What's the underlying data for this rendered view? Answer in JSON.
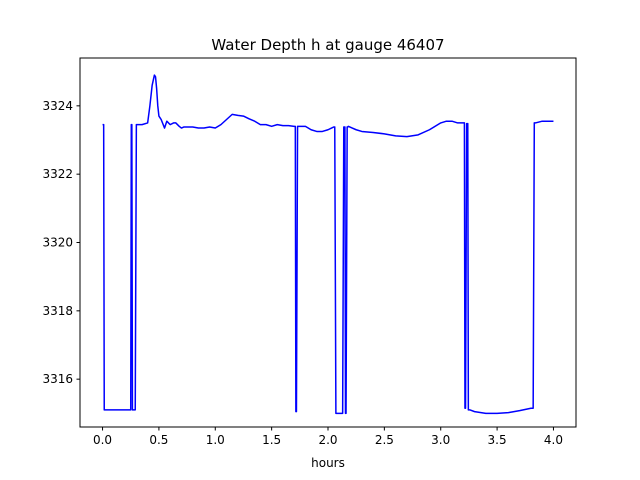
{
  "chart_data": {
    "type": "line",
    "title": "Water Depth h at gauge 46407",
    "xlabel": "hours",
    "ylabel": "",
    "xlim": [
      -0.2,
      4.2
    ],
    "ylim": [
      3314.6,
      3325.4
    ],
    "xticks": [
      0.0,
      0.5,
      1.0,
      1.5,
      2.0,
      2.5,
      3.0,
      3.5,
      4.0
    ],
    "xtick_labels": [
      "0.0",
      "0.5",
      "1.0",
      "1.5",
      "2.0",
      "2.5",
      "3.0",
      "3.5",
      "4.0"
    ],
    "yticks": [
      3316,
      3318,
      3320,
      3322,
      3324
    ],
    "ytick_labels": [
      "3316",
      "3318",
      "3320",
      "3322",
      "3324"
    ],
    "grid": false,
    "series": [
      {
        "color": "#0000ff",
        "x": [
          0.0,
          0.01,
          0.015,
          0.03,
          0.1,
          0.2,
          0.25,
          0.255,
          0.26,
          0.265,
          0.27,
          0.28,
          0.29,
          0.3,
          0.31,
          0.32,
          0.35,
          0.4,
          0.42,
          0.44,
          0.46,
          0.47,
          0.48,
          0.49,
          0.5,
          0.51,
          0.52,
          0.55,
          0.57,
          0.6,
          0.63,
          0.65,
          0.68,
          0.7,
          0.72,
          0.75,
          0.8,
          0.85,
          0.9,
          0.95,
          1.0,
          1.05,
          1.1,
          1.15,
          1.2,
          1.25,
          1.3,
          1.35,
          1.4,
          1.45,
          1.5,
          1.55,
          1.6,
          1.65,
          1.7,
          1.71,
          1.715,
          1.72,
          1.73,
          1.735,
          1.74,
          1.8,
          1.85,
          1.9,
          1.95,
          2.0,
          2.05,
          2.06,
          2.07,
          2.1,
          2.12,
          2.13,
          2.14,
          2.15,
          2.155,
          2.16,
          2.17,
          2.175,
          2.18,
          2.25,
          2.3,
          2.4,
          2.5,
          2.6,
          2.7,
          2.8,
          2.9,
          3.0,
          3.05,
          3.1,
          3.15,
          3.2,
          3.21,
          3.215,
          3.22,
          3.23,
          3.24,
          3.245,
          3.25,
          3.26,
          3.3,
          3.4,
          3.5,
          3.6,
          3.7,
          3.8,
          3.82,
          3.83,
          3.84,
          3.9,
          4.0
        ],
        "y": [
          3323.45,
          3323.45,
          3315.1,
          3315.1,
          3315.1,
          3315.1,
          3315.1,
          3323.45,
          3323.45,
          3315.1,
          3315.1,
          3315.1,
          3315.1,
          3323.45,
          3323.45,
          3323.45,
          3323.45,
          3323.5,
          3324.0,
          3324.6,
          3324.9,
          3324.85,
          3324.5,
          3324.0,
          3323.7,
          3323.65,
          3323.6,
          3323.35,
          3323.55,
          3323.45,
          3323.5,
          3323.5,
          3323.4,
          3323.35,
          3323.38,
          3323.38,
          3323.38,
          3323.35,
          3323.35,
          3323.38,
          3323.35,
          3323.45,
          3323.6,
          3323.75,
          3323.72,
          3323.7,
          3323.62,
          3323.55,
          3323.45,
          3323.45,
          3323.4,
          3323.45,
          3323.42,
          3323.42,
          3323.4,
          3323.4,
          3315.05,
          3315.05,
          3323.4,
          3323.4,
          3323.4,
          3323.4,
          3323.3,
          3323.25,
          3323.25,
          3323.3,
          3323.38,
          3323.38,
          3315.0,
          3315.0,
          3315.0,
          3315.0,
          3323.38,
          3323.38,
          3315.0,
          3315.0,
          3323.38,
          3323.38,
          3323.4,
          3323.3,
          3323.25,
          3323.22,
          3323.18,
          3323.12,
          3323.1,
          3323.15,
          3323.3,
          3323.5,
          3323.55,
          3323.55,
          3323.5,
          3323.5,
          3323.5,
          3315.15,
          3315.15,
          3323.48,
          3323.48,
          3315.1,
          3315.1,
          3315.1,
          3315.05,
          3315.0,
          3315.0,
          3315.02,
          3315.08,
          3315.15,
          3315.15,
          3323.5,
          3323.5,
          3323.55,
          3323.55
        ]
      }
    ]
  }
}
